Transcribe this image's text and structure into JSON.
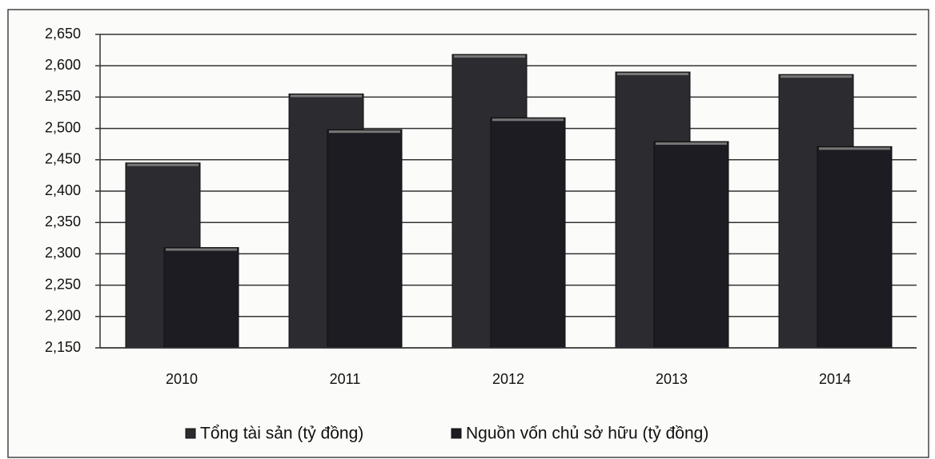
{
  "chart_data": {
    "type": "bar",
    "categories": [
      "2010",
      "2011",
      "2012",
      "2013",
      "2014"
    ],
    "series": [
      {
        "name": "Tổng tài sản (tỷ đồng)",
        "color": "#2b2b30",
        "values": [
          2445,
          2555,
          2618,
          2590,
          2586
        ]
      },
      {
        "name": "Nguồn vốn chủ sở hữu (tỷ đồng)",
        "color": "#1c1c22",
        "values": [
          2310,
          2498,
          2517,
          2479,
          2471
        ]
      }
    ],
    "ylim": [
      2150,
      2650
    ],
    "yticks": [
      {
        "value": 2150,
        "label": "2,150"
      },
      {
        "value": 2200,
        "label": "2,200"
      },
      {
        "value": 2250,
        "label": "2,250"
      },
      {
        "value": 2300,
        "label": "2,300"
      },
      {
        "value": 2350,
        "label": "2,350"
      },
      {
        "value": 2400,
        "label": "2,400"
      },
      {
        "value": 2450,
        "label": "2,450"
      },
      {
        "value": 2500,
        "label": "2,500"
      },
      {
        "value": 2550,
        "label": "2,550"
      },
      {
        "value": 2600,
        "label": "2,600"
      },
      {
        "value": 2650,
        "label": "2,650"
      }
    ],
    "grid": true,
    "legend": "bottom"
  }
}
